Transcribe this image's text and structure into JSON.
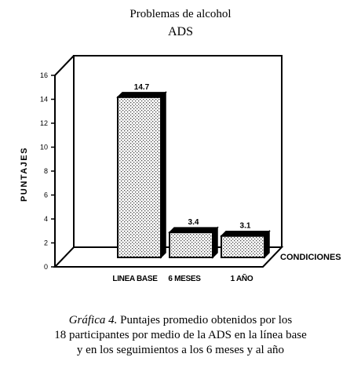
{
  "title_line1": "Problemas de alcohol",
  "title_line2": "ADS",
  "chart_data": {
    "type": "bar",
    "categories": [
      "LINEA BASE",
      "6 MESES",
      "1 AÑO"
    ],
    "values": [
      14.7,
      3.4,
      3.1
    ],
    "data_labels": [
      "14.7",
      "3.4",
      "3.1"
    ],
    "ylabel": "PUNTAJES",
    "xlabel": "CONDICIONES",
    "ylim": [
      0,
      16
    ],
    "yticks": [
      "0",
      "2",
      "4",
      "6",
      "8",
      "10",
      "12",
      "14",
      "16"
    ],
    "bar_style": "3d-dotted",
    "grid": false
  },
  "caption": {
    "figure_label": "Gráfica 4.",
    "line1_rest": " Puntajes promedio obtenidos por los",
    "line2": "18 participantes por medio de la ADS  en la línea base",
    "line3": "y en los seguimientos a los 6 meses y al año"
  }
}
